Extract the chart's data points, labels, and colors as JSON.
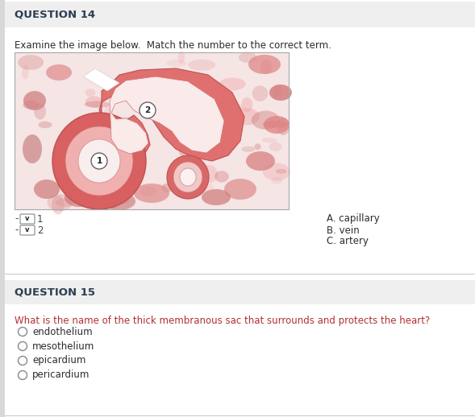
{
  "q14_title": "QUESTION 14",
  "q14_instruction": "Examine the image below.  Match the number to the correct term.",
  "q14_choices": [
    "A. capillary",
    "B. vein",
    "C. artery"
  ],
  "q15_title": "QUESTION 15",
  "q15_question": "What is the name of the thick membranous sac that surrounds and protects the heart?",
  "q15_options": [
    "endothelium",
    "mesothelium",
    "epicardium",
    "pericardium"
  ],
  "bg_color": "#ffffff",
  "title_bar_color": "#efefef",
  "title_color": "#2c3e50",
  "q15_question_color": "#b03030",
  "body_text_color": "#2c2c2c",
  "separator_color": "#cccccc",
  "sidebar_color": "#d8d8d8"
}
